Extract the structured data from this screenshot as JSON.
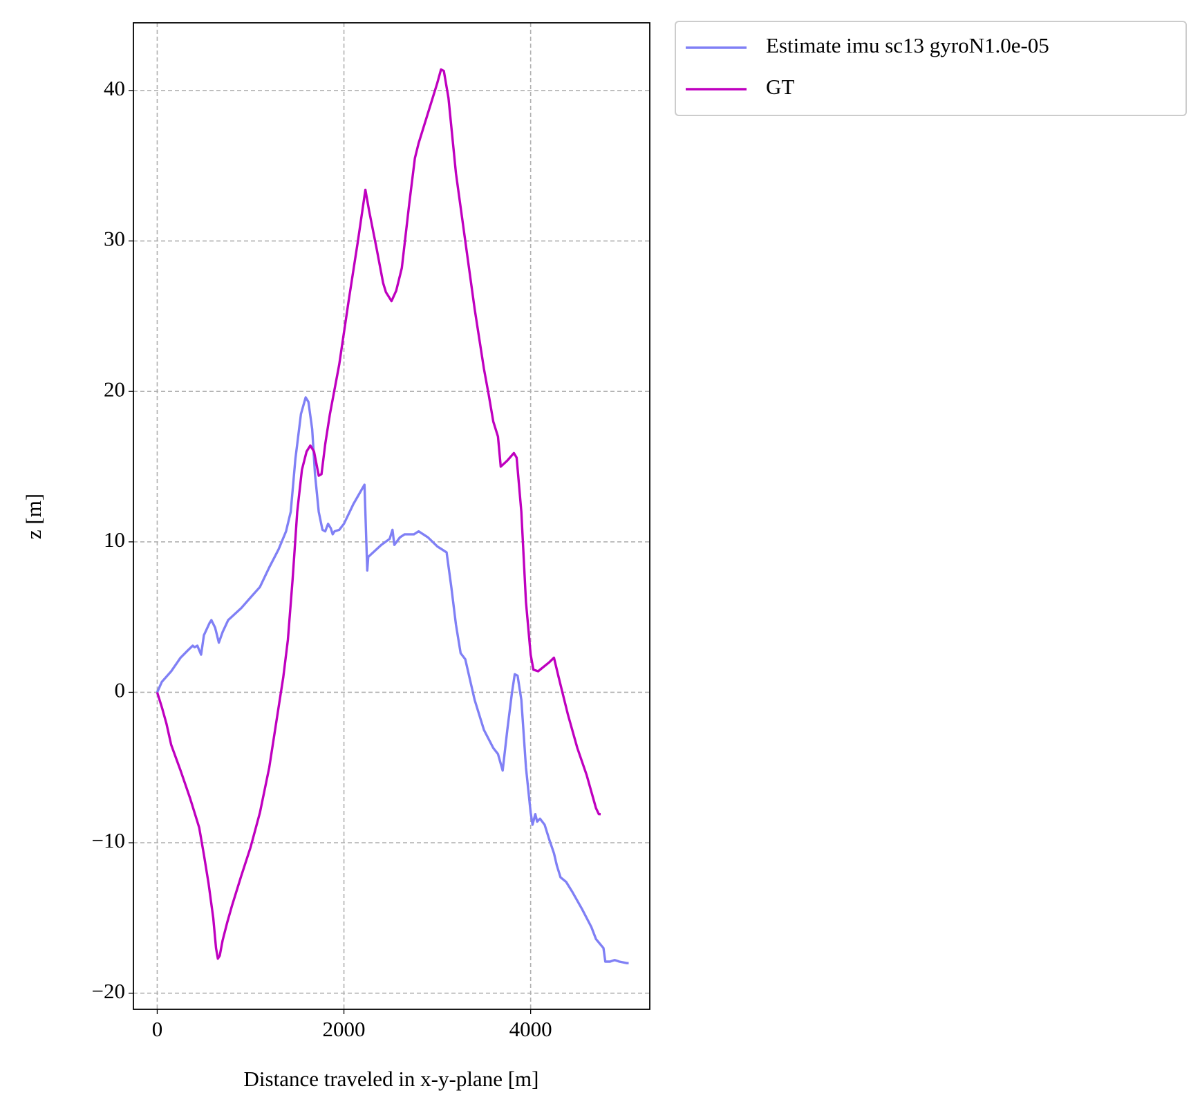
{
  "chart_data": {
    "type": "line",
    "xlabel": "Distance traveled in x-y-plane [m]",
    "ylabel": "z [m]",
    "xlim": [
      -255,
      5276
    ],
    "ylim": [
      -21.07,
      44.5
    ],
    "xticks": [
      0,
      2000,
      4000
    ],
    "yticks": [
      {
        "value": -20,
        "label": "−20"
      },
      {
        "value": -10,
        "label": "−10"
      },
      0,
      10,
      20,
      30,
      40
    ],
    "grid": true,
    "legend": "outside upper right",
    "series": [
      {
        "name": "Estimate imu sc13 gyroN1.0e-05",
        "color": "#8080f5",
        "x": [
          0,
          50,
          150,
          250,
          330,
          380,
          400,
          430,
          470,
          500,
          560,
          580,
          620,
          660,
          700,
          760,
          900,
          1000,
          1100,
          1200,
          1300,
          1380,
          1430,
          1480,
          1540,
          1590,
          1620,
          1660,
          1690,
          1730,
          1770,
          1800,
          1830,
          1860,
          1880,
          1900,
          1950,
          2000,
          2100,
          2220,
          2250,
          2260,
          2400,
          2490,
          2520,
          2540,
          2600,
          2650,
          2750,
          2800,
          2900,
          3000,
          3100,
          3150,
          3200,
          3250,
          3300,
          3400,
          3500,
          3600,
          3650,
          3700,
          3750,
          3800,
          3830,
          3860,
          3900,
          3950,
          4000,
          4020,
          4050,
          4070,
          4100,
          4150,
          4200,
          4250,
          4280,
          4320,
          4380,
          4450,
          4550,
          4650,
          4700,
          4780,
          4800,
          4850,
          4900,
          4950,
          5030,
          5050
        ],
        "values": [
          0,
          0.7,
          1.4,
          2.3,
          2.8,
          3.1,
          3.0,
          3.1,
          2.5,
          3.8,
          4.6,
          4.8,
          4.3,
          3.3,
          4.0,
          4.8,
          5.6,
          6.3,
          7.0,
          8.3,
          9.5,
          10.7,
          12,
          15.5,
          18.5,
          19.6,
          19.3,
          17.5,
          14.5,
          12,
          10.8,
          10.7,
          11.2,
          10.9,
          10.5,
          10.7,
          10.8,
          11.2,
          12.5,
          13.8,
          8.1,
          9,
          9.8,
          10.2,
          10.8,
          9.8,
          10.3,
          10.5,
          10.5,
          10.7,
          10.3,
          9.7,
          9.3,
          7,
          4.5,
          2.6,
          2.2,
          -0.5,
          -2.5,
          -3.7,
          -4.1,
          -5.2,
          -2.5,
          0,
          1.2,
          1.1,
          -0.5,
          -5,
          -8,
          -8.8,
          -8.1,
          -8.6,
          -8.4,
          -8.8,
          -9.8,
          -10.7,
          -11.5,
          -12.3,
          -12.6,
          -13.3,
          -14.4,
          -15.6,
          -16.4,
          -17,
          -17.9,
          -17.9,
          -17.8,
          -17.9,
          -18.0,
          -18.0
        ]
      },
      {
        "name": "GT",
        "color": "#bf00bf",
        "x": [
          0,
          50,
          100,
          150,
          250,
          350,
          400,
          450,
          500,
          550,
          600,
          630,
          650,
          670,
          700,
          750,
          800,
          900,
          1000,
          1100,
          1200,
          1300,
          1350,
          1400,
          1450,
          1500,
          1550,
          1600,
          1640,
          1680,
          1730,
          1760,
          1800,
          1850,
          1950,
          2050,
          2150,
          2230,
          2270,
          2350,
          2420,
          2450,
          2480,
          2510,
          2560,
          2620,
          2700,
          2760,
          2800,
          2850,
          2950,
          3000,
          3040,
          3070,
          3120,
          3200,
          3300,
          3400,
          3500,
          3550,
          3600,
          3650,
          3680,
          3750,
          3820,
          3850,
          3900,
          3950,
          4000,
          4030,
          4080,
          4200,
          4250,
          4300,
          4400,
          4500,
          4600,
          4700,
          4730,
          4750
        ],
        "values": [
          0,
          -1,
          -2.1,
          -3.5,
          -5.2,
          -7,
          -8,
          -9,
          -10.8,
          -12.7,
          -15,
          -17,
          -17.7,
          -17.5,
          -16.5,
          -15.3,
          -14.2,
          -12.2,
          -10.3,
          -8,
          -5,
          -1,
          1,
          3.5,
          7.5,
          12,
          14.8,
          16,
          16.4,
          16,
          14.4,
          14.5,
          16.5,
          18.5,
          21.8,
          26,
          30,
          33.4,
          32,
          29.5,
          27.2,
          26.6,
          26.3,
          26,
          26.7,
          28.2,
          32.5,
          35.5,
          36.5,
          37.5,
          39.5,
          40.5,
          41.4,
          41.3,
          39.5,
          34.5,
          30,
          25.5,
          21.5,
          19.8,
          18,
          17,
          15,
          15.4,
          15.9,
          15.6,
          12,
          6,
          2.5,
          1.5,
          1.4,
          2,
          2.3,
          1,
          -1.5,
          -3.7,
          -5.5,
          -7.7,
          -8.1,
          -8.1
        ]
      }
    ]
  }
}
